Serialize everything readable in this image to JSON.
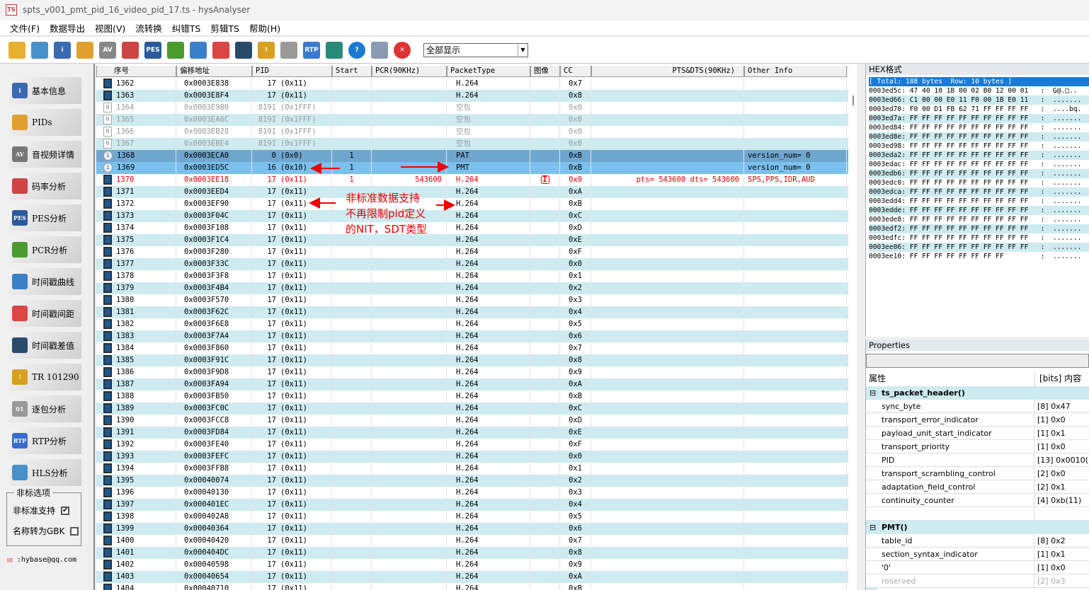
{
  "window": {
    "title": "spts_v001_pmt_pid_16_video_pid_17.ts - hysAnalyser",
    "logo": "TS"
  },
  "menu": [
    "文件(F)",
    "数据导出",
    "视图(V)",
    "流转换",
    "纠错TS",
    "剪辑TS",
    "帮助(H)"
  ],
  "toolbar": {
    "icons": [
      "open-file-icon",
      "network-icon",
      "info-icon",
      "pie-chart-icon",
      "av-icon",
      "line-chart-icon",
      "pes-icon",
      "trend-icon",
      "clock-icon",
      "bar-chart-icon",
      "waveform-icon",
      "warning-icon",
      "binary-icon",
      "rtp-icon",
      "export-icon",
      "help-icon",
      "calculator-icon",
      "close-icon"
    ],
    "filter_value": "全部显示"
  },
  "sidebar": {
    "buttons": [
      "基本信息",
      "PIDs",
      "音视频详情",
      "码率分析",
      "PES分析",
      "PCR分析",
      "时间戳曲线",
      "时间戳间距",
      "时间戳差值",
      "TR 101290",
      "逐包分析",
      "RTP分析",
      "HLS分析"
    ],
    "options_title": "非标选项",
    "opt_nonstandard": "非标准支持",
    "opt_nonstandard_checked": true,
    "opt_gbk": "名称转为GBK",
    "opt_gbk_checked": false,
    "email": ":hybase@qq.com"
  },
  "table": {
    "headers": [
      "序号",
      "偏移地址",
      "PID",
      "Start",
      "PCR(90KHz)",
      "PacketType",
      "图像",
      "CC",
      "PTS&DTS(90KHz)",
      "Other Info"
    ],
    "rows": [
      [
        "1362",
        "0x0003E838",
        "17",
        "(0x11)",
        "",
        "",
        "H.264",
        "",
        "0x7",
        "",
        "",
        "video"
      ],
      [
        "1363",
        "0x0003E8F4",
        "17",
        "(0x11)",
        "",
        "",
        "H.264",
        "",
        "0x8",
        "",
        "",
        "video"
      ],
      [
        "1364",
        "0x0003E9B0",
        "8191",
        "(0x1FFF)",
        "",
        "",
        "空包",
        "",
        "0x0",
        "",
        "",
        "null"
      ],
      [
        "1365",
        "0x0003EA6C",
        "8191",
        "(0x1FFF)",
        "",
        "",
        "空包",
        "",
        "0x0",
        "",
        "",
        "null"
      ],
      [
        "1366",
        "0x0003EB28",
        "8191",
        "(0x1FFF)",
        "",
        "",
        "空包",
        "",
        "0x0",
        "",
        "",
        "null"
      ],
      [
        "1367",
        "0x0003EBE4",
        "8191",
        "(0x1FFF)",
        "",
        "",
        "空包",
        "",
        "0x0",
        "",
        "",
        "null"
      ],
      [
        "1368",
        "0x0003ECA0",
        "0",
        "(0x0)",
        "1",
        "",
        "PAT",
        "",
        "0xB",
        "",
        "version_num= 0",
        "pat"
      ],
      [
        "1369",
        "0x0003ED5C",
        "16",
        "(0x10)",
        "1",
        "",
        "PMT",
        "",
        "0xB",
        "",
        "version_num= 0",
        "pmt"
      ],
      [
        "1370",
        "0x0003EE18",
        "17",
        "(0x11)",
        "1",
        "543600",
        "H.264",
        "I",
        "0x9",
        "pts= 543600 dts= 543600",
        "SPS,PPS,IDR,AUD",
        "red"
      ],
      [
        "1371",
        "0x0003EED4",
        "17",
        "(0x11)",
        "",
        "",
        "H.264",
        "",
        "0xA",
        "",
        "",
        "video"
      ],
      [
        "1372",
        "0x0003EF90",
        "17",
        "(0x11)",
        "",
        "",
        "H.264",
        "",
        "0xB",
        "",
        "",
        "video"
      ],
      [
        "1373",
        "0x0003F04C",
        "17",
        "(0x11)",
        "",
        "",
        "H.264",
        "",
        "0xC",
        "",
        "",
        "video"
      ],
      [
        "1374",
        "0x0003F108",
        "17",
        "(0x11)",
        "",
        "",
        "H.264",
        "",
        "0xD",
        "",
        "",
        "video"
      ],
      [
        "1375",
        "0x0003F1C4",
        "17",
        "(0x11)",
        "",
        "",
        "H.264",
        "",
        "0xE",
        "",
        "",
        "video"
      ],
      [
        "1376",
        "0x0003F280",
        "17",
        "(0x11)",
        "",
        "",
        "H.264",
        "",
        "0xF",
        "",
        "",
        "video"
      ],
      [
        "1377",
        "0x0003F33C",
        "17",
        "(0x11)",
        "",
        "",
        "H.264",
        "",
        "0x0",
        "",
        "",
        "video"
      ],
      [
        "1378",
        "0x0003F3F8",
        "17",
        "(0x11)",
        "",
        "",
        "H.264",
        "",
        "0x1",
        "",
        "",
        "video"
      ],
      [
        "1379",
        "0x0003F4B4",
        "17",
        "(0x11)",
        "",
        "",
        "H.264",
        "",
        "0x2",
        "",
        "",
        "video"
      ],
      [
        "1380",
        "0x0003F570",
        "17",
        "(0x11)",
        "",
        "",
        "H.264",
        "",
        "0x3",
        "",
        "",
        "video"
      ],
      [
        "1381",
        "0x0003F62C",
        "17",
        "(0x11)",
        "",
        "",
        "H.264",
        "",
        "0x4",
        "",
        "",
        "video"
      ],
      [
        "1382",
        "0x0003F6E8",
        "17",
        "(0x11)",
        "",
        "",
        "H.264",
        "",
        "0x5",
        "",
        "",
        "video"
      ],
      [
        "1383",
        "0x0003F7A4",
        "17",
        "(0x11)",
        "",
        "",
        "H.264",
        "",
        "0x6",
        "",
        "",
        "video"
      ],
      [
        "1384",
        "0x0003F860",
        "17",
        "(0x11)",
        "",
        "",
        "H.264",
        "",
        "0x7",
        "",
        "",
        "video"
      ],
      [
        "1385",
        "0x0003F91C",
        "17",
        "(0x11)",
        "",
        "",
        "H.264",
        "",
        "0x8",
        "",
        "",
        "video"
      ],
      [
        "1386",
        "0x0003F9D8",
        "17",
        "(0x11)",
        "",
        "",
        "H.264",
        "",
        "0x9",
        "",
        "",
        "video"
      ],
      [
        "1387",
        "0x0003FA94",
        "17",
        "(0x11)",
        "",
        "",
        "H.264",
        "",
        "0xA",
        "",
        "",
        "video"
      ],
      [
        "1388",
        "0x0003FB50",
        "17",
        "(0x11)",
        "",
        "",
        "H.264",
        "",
        "0xB",
        "",
        "",
        "video"
      ],
      [
        "1389",
        "0x0003FC0C",
        "17",
        "(0x11)",
        "",
        "",
        "H.264",
        "",
        "0xC",
        "",
        "",
        "video"
      ],
      [
        "1390",
        "0x0003FCC8",
        "17",
        "(0x11)",
        "",
        "",
        "H.264",
        "",
        "0xD",
        "",
        "",
        "video"
      ],
      [
        "1391",
        "0x0003FD84",
        "17",
        "(0x11)",
        "",
        "",
        "H.264",
        "",
        "0xE",
        "",
        "",
        "video"
      ],
      [
        "1392",
        "0x0003FE40",
        "17",
        "(0x11)",
        "",
        "",
        "H.264",
        "",
        "0xF",
        "",
        "",
        "video"
      ],
      [
        "1393",
        "0x0003FEFC",
        "17",
        "(0x11)",
        "",
        "",
        "H.264",
        "",
        "0x0",
        "",
        "",
        "video"
      ],
      [
        "1394",
        "0x0003FFB8",
        "17",
        "(0x11)",
        "",
        "",
        "H.264",
        "",
        "0x1",
        "",
        "",
        "video"
      ],
      [
        "1395",
        "0x00040074",
        "17",
        "(0x11)",
        "",
        "",
        "H.264",
        "",
        "0x2",
        "",
        "",
        "video"
      ],
      [
        "1396",
        "0x00040130",
        "17",
        "(0x11)",
        "",
        "",
        "H.264",
        "",
        "0x3",
        "",
        "",
        "video"
      ],
      [
        "1397",
        "0x000401EC",
        "17",
        "(0x11)",
        "",
        "",
        "H.264",
        "",
        "0x4",
        "",
        "",
        "video"
      ],
      [
        "1398",
        "0x000402A8",
        "17",
        "(0x11)",
        "",
        "",
        "H.264",
        "",
        "0x5",
        "",
        "",
        "video"
      ],
      [
        "1399",
        "0x00040364",
        "17",
        "(0x11)",
        "",
        "",
        "H.264",
        "",
        "0x6",
        "",
        "",
        "video"
      ],
      [
        "1400",
        "0x00040420",
        "17",
        "(0x11)",
        "",
        "",
        "H.264",
        "",
        "0x7",
        "",
        "",
        "video"
      ],
      [
        "1401",
        "0x000404DC",
        "17",
        "(0x11)",
        "",
        "",
        "H.264",
        "",
        "0x8",
        "",
        "",
        "video"
      ],
      [
        "1402",
        "0x00040598",
        "17",
        "(0x11)",
        "",
        "",
        "H.264",
        "",
        "0x9",
        "",
        "",
        "video"
      ],
      [
        "1403",
        "0x00040654",
        "17",
        "(0x11)",
        "",
        "",
        "H.264",
        "",
        "0xA",
        "",
        "",
        "video"
      ],
      [
        "1404",
        "0x00040710",
        "17",
        "(0x11)",
        "",
        "",
        "H.264",
        "",
        "0xB",
        "",
        "",
        "video"
      ]
    ]
  },
  "annotation": {
    "lines": [
      "非标准数据支持",
      "不再限制pid定义",
      "的NIT，SDT类型"
    ],
    "color": "#ee0000"
  },
  "hex": {
    "title": "HEX格式",
    "header": "[ Total: 188 bytes  Row: 10 bytes ]",
    "rows": [
      [
        "0003ed5c:",
        "47 40 10 1B 00 02 B0 12 00 01",
        ":  G@.□.."
      ],
      [
        "0003ed66:",
        "C1 00 00 E0 11 F0 00 1B E0 11",
        ":  ......."
      ],
      [
        "0003ed70:",
        "F0 00 D1 FB 62 71 FF FF FF FF",
        ":  ....bq."
      ],
      [
        "0003ed7a:",
        "FF FF FF FF FF FF FF FF FF FF",
        ":  ......."
      ],
      [
        "0003ed84:",
        "FF FF FF FF FF FF FF FF FF FF",
        ":  ......."
      ],
      [
        "0003ed8e:",
        "FF FF FF FF FF FF FF FF FF FF",
        ":  ......."
      ],
      [
        "0003ed98:",
        "FF FF FF FF FF FF FF FF FF FF",
        ":  ......."
      ],
      [
        "0003eda2:",
        "FF FF FF FF FF FF FF FF FF FF",
        ":  ......."
      ],
      [
        "0003edac:",
        "FF FF FF FF FF FF FF FF FF FF",
        ":  ......."
      ],
      [
        "0003edb6:",
        "FF FF FF FF FF FF FF FF FF FF",
        ":  ......."
      ],
      [
        "0003edc0:",
        "FF FF FF FF FF FF FF FF FF FF",
        ":  ......."
      ],
      [
        "0003edca:",
        "FF FF FF FF FF FF FF FF FF FF",
        ":  ......."
      ],
      [
        "0003edd4:",
        "FF FF FF FF FF FF FF FF FF FF",
        ":  ......."
      ],
      [
        "0003edde:",
        "FF FF FF FF FF FF FF FF FF FF",
        ":  ......."
      ],
      [
        "0003ede8:",
        "FF FF FF FF FF FF FF FF FF FF",
        ":  ......."
      ],
      [
        "0003edf2:",
        "FF FF FF FF FF FF FF FF FF FF",
        ":  ......."
      ],
      [
        "0003edfc:",
        "FF FF FF FF FF FF FF FF FF FF",
        ":  ......."
      ],
      [
        "0003ee06:",
        "FF FF FF FF FF FF FF FF FF FF",
        ":  ......."
      ],
      [
        "0003ee10:",
        "FF FF FF FF FF FF FF FF      ",
        ":  ......."
      ]
    ]
  },
  "properties": {
    "title": "Properties",
    "col_name": "属性",
    "col_value": "[bits] 内容",
    "items": [
      {
        "g": true,
        "k": "ts_packet_header()",
        "v": ""
      },
      {
        "k": "sync_byte",
        "v": "[8] 0x47"
      },
      {
        "k": "transport_error_indicator",
        "v": "[1] 0x0"
      },
      {
        "k": "payload_unit_start_indicator",
        "v": "[1] 0x1"
      },
      {
        "k": "transport_priority",
        "v": "[1] 0x0"
      },
      {
        "k": "PID",
        "v": "[13] 0x0010(16"
      },
      {
        "k": "transport_scrambling_control",
        "v": "[2] 0x0"
      },
      {
        "k": "adaptation_field_control",
        "v": "[2] 0x1"
      },
      {
        "k": "continuity_counter",
        "v": "[4] 0xb(11)"
      },
      {
        "k": "",
        "v": ""
      },
      {
        "g": true,
        "k": "PMT()",
        "v": ""
      },
      {
        "k": "table_id",
        "v": "[8]  0x2"
      },
      {
        "k": "section_syntax_indicator",
        "v": "[1]  0x1"
      },
      {
        "k": "'0'",
        "v": "[1]  0x0"
      },
      {
        "dim": true,
        "k": "reserved",
        "v": "[2]  0x3"
      }
    ]
  }
}
